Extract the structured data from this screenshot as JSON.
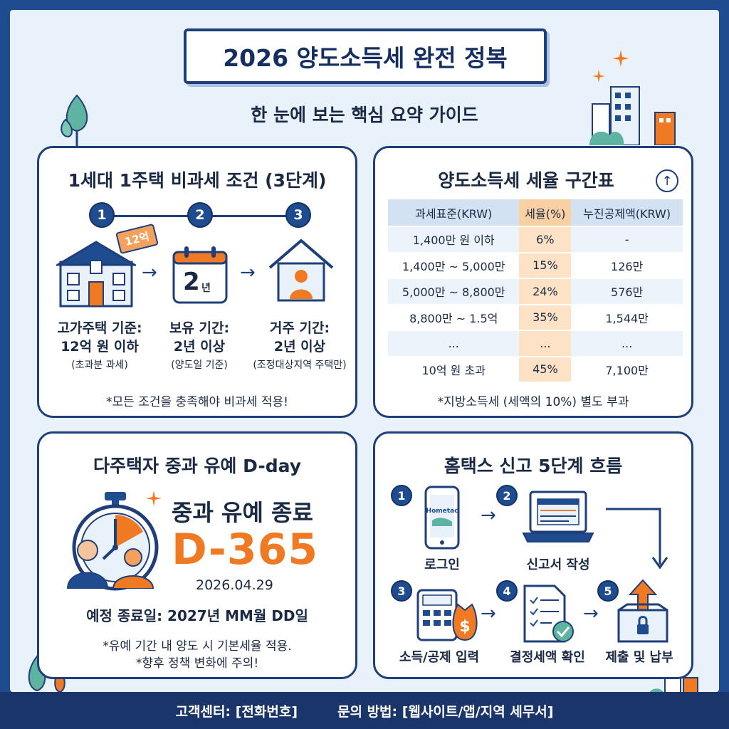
{
  "header": {
    "title": "2026 양도소득세 완전 정복",
    "subtitle": "한 눈에 보는 핵심 요약 가이드"
  },
  "exemption": {
    "title": "1세대 1주택 비과세 조건 (3단계)",
    "steps": [
      {
        "number": "1",
        "tag": "12억",
        "heading": "고가주택 기준:",
        "value": "12억 원 이하",
        "detail": "(초과분 과세)"
      },
      {
        "number": "2",
        "calendar": "2",
        "calendar_unit": "년",
        "heading": "보유 기간:",
        "value": "2년 이상",
        "detail": "(양도일 기준)"
      },
      {
        "number": "3",
        "heading": "거주 기간:",
        "value": "2년 이상",
        "detail": "(조정대상지역 주택만)"
      }
    ],
    "note": "*모든 조건을 충족해야 비과세 적용!"
  },
  "rates": {
    "title": "양도소득세 세율 구간표",
    "columns": [
      "과세표준(KRW)",
      "세율(%)",
      "누진공제액(KRW)"
    ],
    "rows": [
      [
        "1,400만 원 이하",
        "6%",
        "-"
      ],
      [
        "1,400만 ~ 5,000만",
        "15%",
        "126만"
      ],
      [
        "5,000만 ~ 8,800만",
        "24%",
        "576만"
      ],
      [
        "8,800만 ~ 1.5억",
        "35%",
        "1,544만"
      ],
      [
        "...",
        "...",
        "..."
      ],
      [
        "10억 원 초과",
        "45%",
        "7,100만"
      ]
    ],
    "note": "*지방소득세 (세액의 10%) 별도 부과"
  },
  "grace": {
    "title": "다주택자 중과 유예 D-day",
    "headline": "중과 유예 종료",
    "dday": "D-365",
    "date": "2026.04.29",
    "end_date": "예정 종료일: 2027년 MM월 DD일",
    "note1": "*유예 기간 내 양도 시 기본세율 적용.",
    "note2": "*향후 정책 변화에 주의!"
  },
  "hometax": {
    "title": "홈택스 신고 5단계 흐름",
    "app_label": "Hometac",
    "steps": [
      {
        "number": "1",
        "label": "로그인"
      },
      {
        "number": "2",
        "label": "신고서 작성"
      },
      {
        "number": "3",
        "label": "소득/공제 입력"
      },
      {
        "number": "4",
        "label": "결정세액 확인"
      },
      {
        "number": "5",
        "label": "제출 및 납부"
      }
    ]
  },
  "footer": {
    "contact": "고객센터: [전화번호]",
    "inquiry": "문의 방법: [웹사이트/앱/지역 세무서]"
  },
  "colors": {
    "navy": "#1f3f7a",
    "accent_orange": "#f07a24",
    "background": "#e9f1fb"
  }
}
